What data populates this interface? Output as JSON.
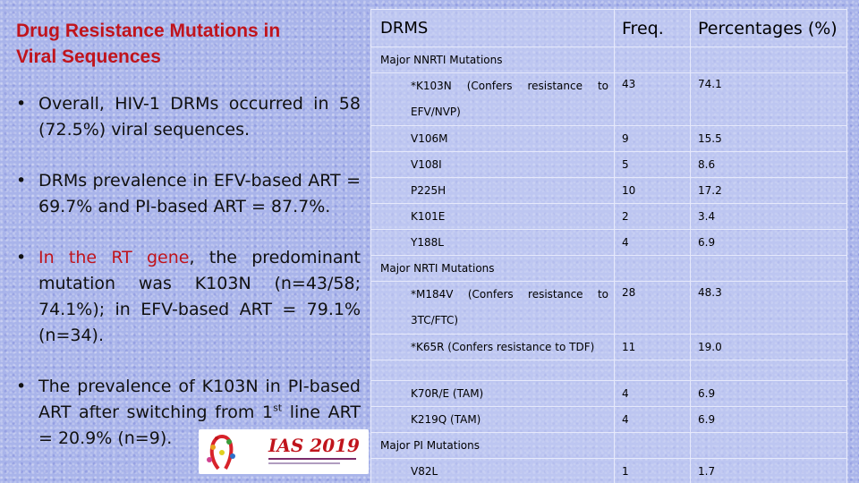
{
  "title": {
    "line1": "Drug Resistance Mutations in",
    "line2": "Viral Sequences"
  },
  "bullets": [
    {
      "text": "Overall, HIV-1 DRMs occurred in 58 (72.5%) viral sequences."
    },
    {
      "text": "DRMs prevalence in EFV-based ART = 69.7% and PI-based ART = 87.7%."
    },
    {
      "red": "In the RT gene",
      "text": ", the predominant mutation was K103N (n=43/58; 74.1%); in EFV-based ART = 79.1% (n=34)."
    },
    {
      "pre": "The prevalence of K103N in PI-based ART after switching from 1",
      "sup": "st",
      "post": " line ART = 20.9% (n=9)."
    }
  ],
  "logo": {
    "text": "IAS 2019"
  },
  "table": {
    "headers": {
      "drms": "DRMS",
      "freq": "Freq.",
      "pct": "Percentages (%)"
    },
    "sections": {
      "nnrti": "Major NNRTI Mutations",
      "nrti": "Major NRTI Mutations",
      "pi": "Major PI Mutations"
    },
    "rows": [
      {
        "name": "*K103N (Confers resistance to EFV/NVP)",
        "freq": "43",
        "pct": "74.1"
      },
      {
        "name": "V106M",
        "freq": "9",
        "pct": "15.5"
      },
      {
        "name": "V108I",
        "freq": "5",
        "pct": "8.6"
      },
      {
        "name": "P225H",
        "freq": "10",
        "pct": "17.2"
      },
      {
        "name": "K101E",
        "freq": "2",
        "pct": "3.4"
      },
      {
        "name": "Y188L",
        "freq": "4",
        "pct": "6.9"
      },
      {
        "name": "*M184V (Confers resistance to 3TC/FTC)",
        "freq": "28",
        "pct": "48.3"
      },
      {
        "name": "*K65R (Confers resistance to TDF)",
        "freq": "11",
        "pct": "19.0"
      },
      {
        "name": "K70R/E (TAM)",
        "freq": "4",
        "pct": "6.9"
      },
      {
        "name": "K219Q (TAM)",
        "freq": "4",
        "pct": "6.9"
      },
      {
        "name": "V82L",
        "freq": "1",
        "pct": "1.7"
      }
    ]
  },
  "colors": {
    "title_red": "#c0141c",
    "background": "#a9b4ea"
  }
}
